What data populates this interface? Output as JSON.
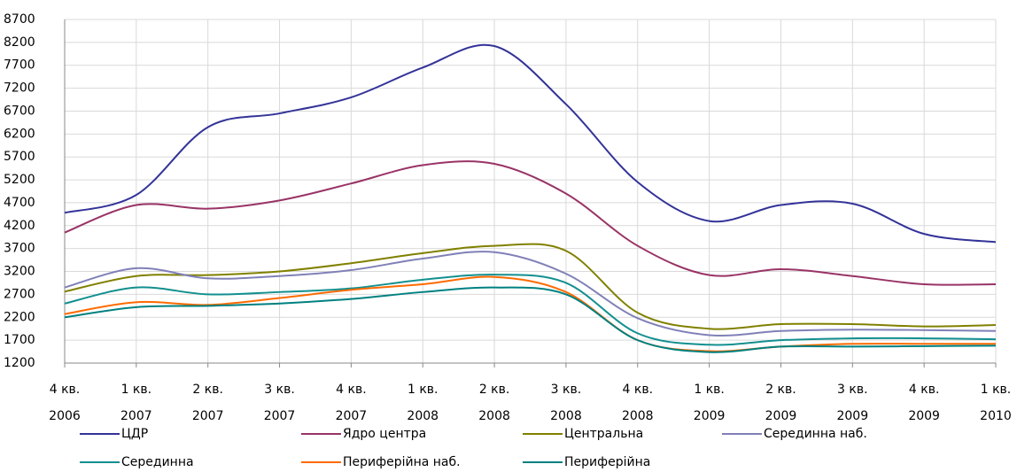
{
  "chart_data": {
    "type": "line",
    "categories": [
      "4 кв. 2006",
      "1 кв. 2007",
      "2 кв. 2007",
      "3 кв. 2007",
      "4 кв. 2007",
      "1 кв. 2008",
      "2 кв. 2008",
      "3 кв. 2008",
      "4 кв. 2008",
      "1 кв. 2009",
      "2 кв. 2009",
      "3 кв. 2009",
      "4 кв. 2009",
      "1 кв. 2010"
    ],
    "series": [
      {
        "name": "ЦДР",
        "color": "#333399",
        "values": [
          4480,
          4870,
          6350,
          6650,
          7000,
          7650,
          8120,
          6850,
          5150,
          4300,
          4650,
          4680,
          4020,
          3840
        ]
      },
      {
        "name": "Ядро центра",
        "color": "#993366",
        "values": [
          4050,
          4650,
          4570,
          4750,
          5120,
          5520,
          5550,
          4900,
          3760,
          3120,
          3250,
          3100,
          2920,
          2920
        ]
      },
      {
        "name": "Центральна",
        "color": "#808000",
        "values": [
          2760,
          3100,
          3120,
          3200,
          3380,
          3600,
          3760,
          3650,
          2300,
          1950,
          2050,
          2050,
          2000,
          2030
        ]
      },
      {
        "name": "Серединна наб.",
        "color": "#8080b8",
        "values": [
          2850,
          3270,
          3050,
          3100,
          3230,
          3480,
          3620,
          3150,
          2180,
          1810,
          1900,
          1930,
          1920,
          1900
        ]
      },
      {
        "name": "Серединна",
        "color": "#138f8f",
        "values": [
          2500,
          2850,
          2700,
          2750,
          2830,
          3020,
          3130,
          2950,
          1850,
          1600,
          1700,
          1740,
          1740,
          1720
        ]
      },
      {
        "name": "Периферійна наб.",
        "color": "#ff6a00",
        "values": [
          2270,
          2530,
          2470,
          2620,
          2800,
          2920,
          3080,
          2750,
          1700,
          1460,
          1560,
          1620,
          1620,
          1620
        ]
      },
      {
        "name": "Периферійна",
        "color": "#008080",
        "values": [
          2200,
          2420,
          2450,
          2500,
          2600,
          2750,
          2850,
          2700,
          1700,
          1440,
          1560,
          1560,
          1570,
          1580
        ]
      }
    ],
    "ylim": [
      1200,
      8700
    ],
    "yticks": [
      1200,
      1700,
      2200,
      2700,
      3200,
      3700,
      4200,
      4700,
      5200,
      5700,
      6200,
      6700,
      7200,
      7700,
      8200,
      8700
    ],
    "grid": true
  }
}
